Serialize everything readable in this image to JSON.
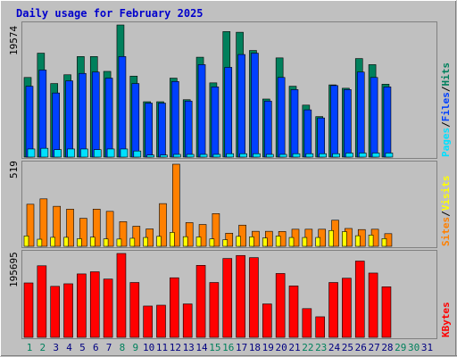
{
  "title": "Daily usage for February 2025",
  "colors": {
    "background": "#c0c0c0",
    "title": "#0000cc",
    "hits": "#00805c",
    "files": "#0040ff",
    "pages": "#00e0ff",
    "visits": "#ffff00",
    "sites": "#ff8000",
    "kbytes": "#ff0000",
    "weekday_label": "#000080",
    "weekend_label": "#00805c",
    "empty_label": "#00805c"
  },
  "axes": {
    "top_max_label": "19574",
    "mid_max_label": "519",
    "bottom_max_label": "195695"
  },
  "legend": {
    "top": [
      "Pages",
      "/",
      "Files",
      "/",
      "Hits"
    ],
    "mid": [
      "Sites",
      "/",
      "Visits"
    ],
    "bottom": [
      "KBytes"
    ]
  },
  "chart_data": [
    {
      "type": "bar",
      "title": "Daily usage for February 2025",
      "ylim": [
        0,
        19574
      ],
      "categories": [
        "1",
        "2",
        "3",
        "4",
        "5",
        "6",
        "7",
        "8",
        "9",
        "10",
        "11",
        "12",
        "13",
        "14",
        "15",
        "16",
        "17",
        "18",
        "19",
        "20",
        "21",
        "22",
        "23",
        "24",
        "25",
        "26",
        "27",
        "28",
        "29",
        "30",
        "31"
      ],
      "series": [
        {
          "name": "Hits",
          "values": [
            11800,
            15400,
            10900,
            12200,
            14900,
            14900,
            12700,
            19574,
            12000,
            8200,
            8200,
            11700,
            8500,
            14800,
            11000,
            18600,
            18500,
            15800,
            8600,
            14700,
            10500,
            7700,
            6000,
            10700,
            10200,
            14600,
            13700,
            10800,
            null,
            null,
            null
          ]
        },
        {
          "name": "Files",
          "values": [
            10500,
            12900,
            9500,
            11300,
            12400,
            12600,
            11700,
            14900,
            10900,
            8000,
            8000,
            11200,
            8300,
            13700,
            10400,
            13300,
            15200,
            15400,
            8300,
            11800,
            10000,
            7000,
            5800,
            10600,
            10000,
            12600,
            11800,
            10400,
            null,
            null,
            null
          ]
        },
        {
          "name": "Pages",
          "values": [
            1200,
            1300,
            1100,
            1200,
            1200,
            1100,
            1200,
            1200,
            900,
            300,
            300,
            400,
            400,
            400,
            400,
            500,
            500,
            500,
            400,
            400,
            500,
            500,
            500,
            500,
            600,
            600,
            600,
            600,
            null,
            null,
            null
          ]
        }
      ]
    },
    {
      "type": "bar",
      "ylim": [
        0,
        519
      ],
      "categories": [
        "1",
        "2",
        "3",
        "4",
        "5",
        "6",
        "7",
        "8",
        "9",
        "10",
        "11",
        "12",
        "13",
        "14",
        "15",
        "16",
        "17",
        "18",
        "19",
        "20",
        "21",
        "22",
        "23",
        "24",
        "25",
        "26",
        "27",
        "28",
        "29",
        "30",
        "31"
      ],
      "series": [
        {
          "name": "Sites",
          "values": [
            266,
            300,
            253,
            235,
            177,
            235,
            221,
            156,
            127,
            110,
            270,
            519,
            150,
            138,
            207,
            83,
            134,
            95,
            95,
            94,
            108,
            108,
            108,
            165,
            113,
            106,
            108,
            80,
            null,
            null,
            null
          ]
        },
        {
          "name": "Visits",
          "values": [
            66,
            45,
            57,
            57,
            48,
            58,
            47,
            46,
            51,
            56,
            63,
            88,
            61,
            59,
            47,
            42,
            63,
            60,
            53,
            65,
            56,
            56,
            56,
            100,
            93,
            67,
            71,
            49,
            null,
            null,
            null
          ]
        }
      ]
    },
    {
      "type": "bar",
      "ylim": [
        0,
        195695
      ],
      "categories": [
        "1",
        "2",
        "3",
        "4",
        "5",
        "6",
        "7",
        "8",
        "9",
        "10",
        "11",
        "12",
        "13",
        "14",
        "15",
        "16",
        "17",
        "18",
        "19",
        "20",
        "21",
        "22",
        "23",
        "24",
        "25",
        "26",
        "27",
        "28",
        "29",
        "30",
        "31"
      ],
      "series": [
        {
          "name": "KBytes",
          "values": [
            127000,
            167000,
            119000,
            125000,
            148000,
            153000,
            136000,
            195695,
            128000,
            73000,
            75000,
            139000,
            78000,
            168000,
            128000,
            184000,
            191000,
            186000,
            78000,
            149000,
            120000,
            67000,
            48000,
            128000,
            138000,
            178000,
            150000,
            118000,
            null,
            null,
            null
          ]
        }
      ]
    }
  ]
}
